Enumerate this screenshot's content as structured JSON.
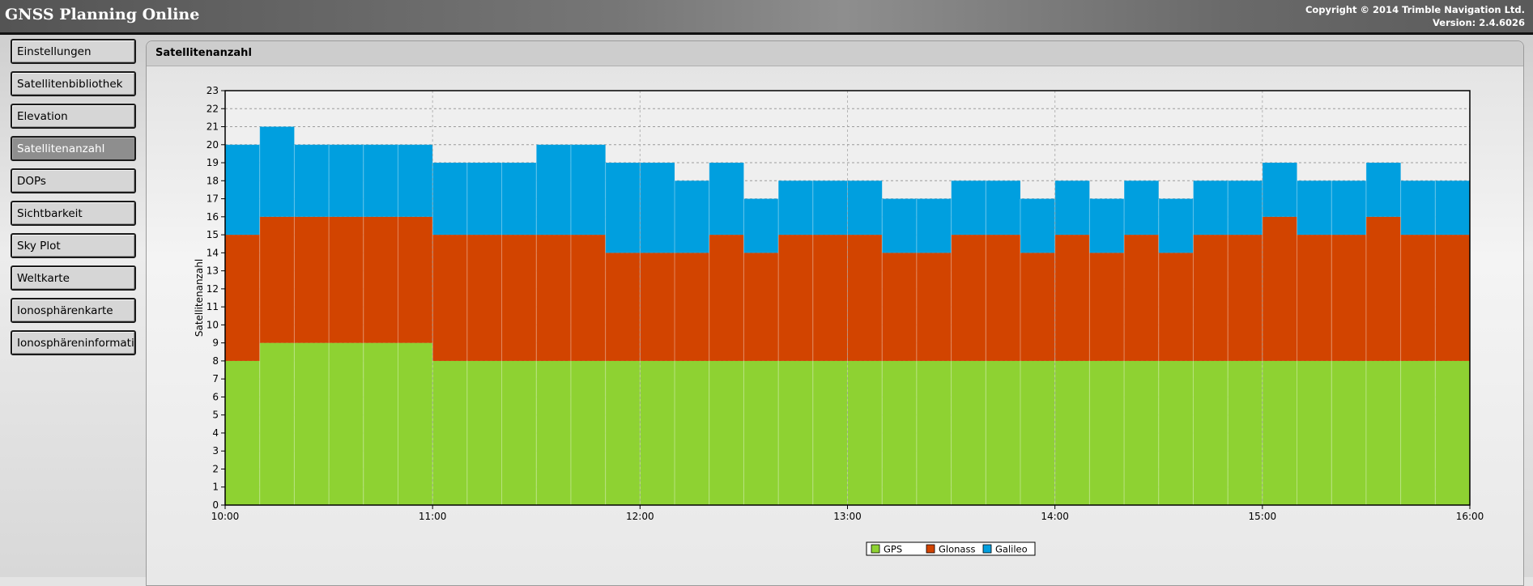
{
  "app": {
    "title": "GNSS Planning Online",
    "copyright": "Copyright © 2014 Trimble Navigation Ltd.",
    "version": "Version: 2.4.6026"
  },
  "sidebar": {
    "items": [
      {
        "label": "Einstellungen",
        "active": false
      },
      {
        "label": "Satellitenbibliothek",
        "active": false
      },
      {
        "label": "Elevation",
        "active": false
      },
      {
        "label": "Satellitenanzahl",
        "active": true
      },
      {
        "label": "DOPs",
        "active": false
      },
      {
        "label": "Sichtbarkeit",
        "active": false
      },
      {
        "label": "Sky Plot",
        "active": false
      },
      {
        "label": "Weltkarte",
        "active": false
      },
      {
        "label": "Ionosphärenkarte",
        "active": false
      },
      {
        "label": "Ionosphäreninformation",
        "active": false
      }
    ]
  },
  "panel": {
    "title": "Satellitenanzahl"
  },
  "colors": {
    "GPS": "#8ed232",
    "Glonass": "#d24400",
    "Galileo": "#009fdf",
    "grid": "#9c9c9c",
    "plot_bg": "#efefef"
  },
  "chart_data": {
    "type": "area",
    "stacked": true,
    "step": true,
    "title": "",
    "xlabel": "",
    "ylabel": "Satellitenanzahl",
    "xlim": [
      "10:00",
      "16:00"
    ],
    "ylim": [
      0,
      23
    ],
    "x_ticks": [
      "10:00",
      "11:00",
      "12:00",
      "13:00",
      "14:00",
      "15:00",
      "16:00"
    ],
    "y_ticks": [
      0,
      1,
      2,
      3,
      4,
      5,
      6,
      7,
      8,
      9,
      10,
      11,
      12,
      13,
      14,
      15,
      16,
      17,
      18,
      19,
      20,
      21,
      22,
      23
    ],
    "interval_minutes": 10,
    "x": [
      "10:00",
      "10:10",
      "10:20",
      "10:30",
      "10:40",
      "10:50",
      "11:00",
      "11:10",
      "11:20",
      "11:30",
      "11:40",
      "11:50",
      "12:00",
      "12:10",
      "12:20",
      "12:30",
      "12:40",
      "12:50",
      "13:00",
      "13:10",
      "13:20",
      "13:30",
      "13:40",
      "13:50",
      "14:00",
      "14:10",
      "14:20",
      "14:30",
      "14:40",
      "14:50",
      "15:00",
      "15:10",
      "15:20",
      "15:30",
      "15:40",
      "15:50"
    ],
    "series": [
      {
        "name": "GPS",
        "values": [
          8,
          9,
          9,
          9,
          9,
          9,
          8,
          8,
          8,
          8,
          8,
          8,
          8,
          8,
          8,
          8,
          8,
          8,
          8,
          8,
          8,
          8,
          8,
          8,
          8,
          8,
          8,
          8,
          8,
          8,
          8,
          8,
          8,
          8,
          8,
          8
        ]
      },
      {
        "name": "Glonass",
        "values": [
          7,
          7,
          7,
          7,
          7,
          7,
          7,
          7,
          7,
          7,
          7,
          6,
          6,
          6,
          7,
          6,
          7,
          7,
          7,
          6,
          6,
          7,
          7,
          6,
          7,
          6,
          7,
          6,
          7,
          7,
          8,
          7,
          7,
          8,
          7,
          7
        ]
      },
      {
        "name": "Galileo",
        "values": [
          5,
          5,
          4,
          4,
          4,
          4,
          4,
          4,
          4,
          5,
          5,
          5,
          5,
          4,
          4,
          3,
          3,
          3,
          3,
          3,
          3,
          3,
          3,
          3,
          3,
          3,
          3,
          3,
          3,
          3,
          3,
          3,
          3,
          3,
          3,
          3
        ]
      }
    ],
    "legend": {
      "placement": "bottom-center",
      "entries": [
        "GPS",
        "Glonass",
        "Galileo"
      ]
    },
    "grid": true
  }
}
